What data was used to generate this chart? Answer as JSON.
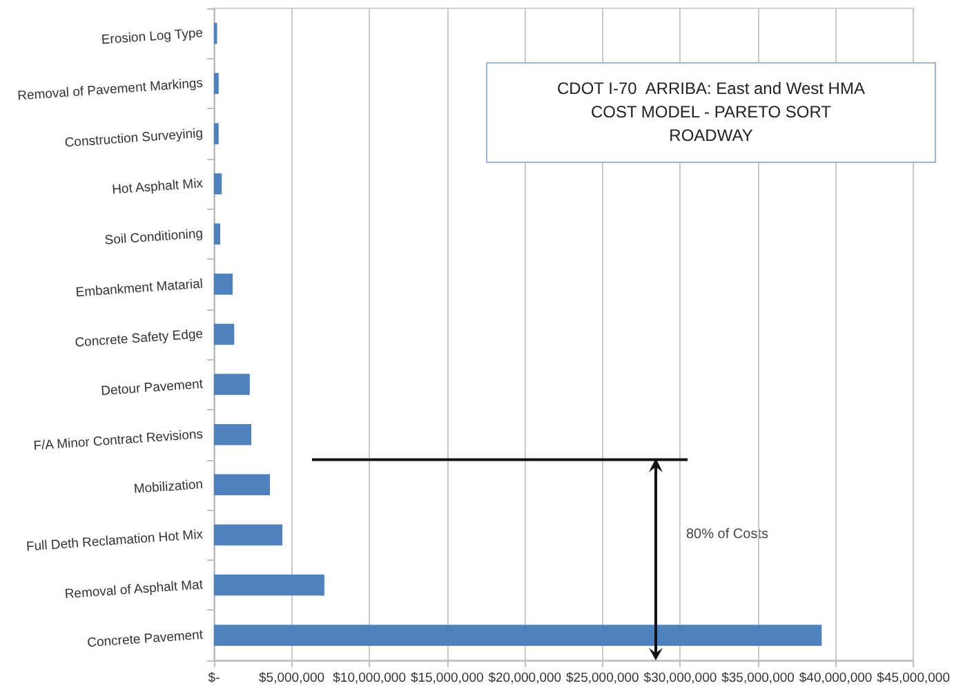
{
  "chart_data": {
    "type": "bar",
    "orientation": "horizontal",
    "title": "CDOT I-70  ARRIBA: East and West HMA\nCOST MODEL - PARETO SORT\nROADWAY",
    "categories": [
      "Erosion Log Type",
      "Removal of Pavement Markings",
      "Construction Surveyinig",
      "Hot Asphalt Mix",
      "Soil Conditioning",
      "Embankment Matarial",
      "Concrete Safety Edge",
      "Detour Pavement",
      "F/A Minor Contract Revisions",
      "Mobilization",
      "Full Deth Reclamation Hot Mix",
      "Removal of Asphalt Mat",
      "Concrete Pavement"
    ],
    "values": [
      200000,
      300000,
      300000,
      500000,
      400000,
      1200000,
      1300000,
      2300000,
      2400000,
      3600000,
      4400000,
      7100000,
      39100000
    ],
    "color": "#4f81bd",
    "xlim": [
      0,
      45000000
    ],
    "xticks": [
      {
        "value": 0,
        "label": "$-"
      },
      {
        "value": 5000000,
        "label": "$5,000,000"
      },
      {
        "value": 10000000,
        "label": "$10,000,000"
      },
      {
        "value": 15000000,
        "label": "$15,000,000"
      },
      {
        "value": 20000000,
        "label": "$20,000,000"
      },
      {
        "value": 25000000,
        "label": "$25,000,000"
      },
      {
        "value": 30000000,
        "label": "$30,000,000"
      },
      {
        "value": 35000000,
        "label": "$35,000,000"
      },
      {
        "value": 40000000,
        "label": "$40,000,000"
      },
      {
        "value": 45000000,
        "label": "$45,000,000"
      }
    ],
    "grid": "x",
    "annotations": [
      "80% of Costs"
    ]
  }
}
